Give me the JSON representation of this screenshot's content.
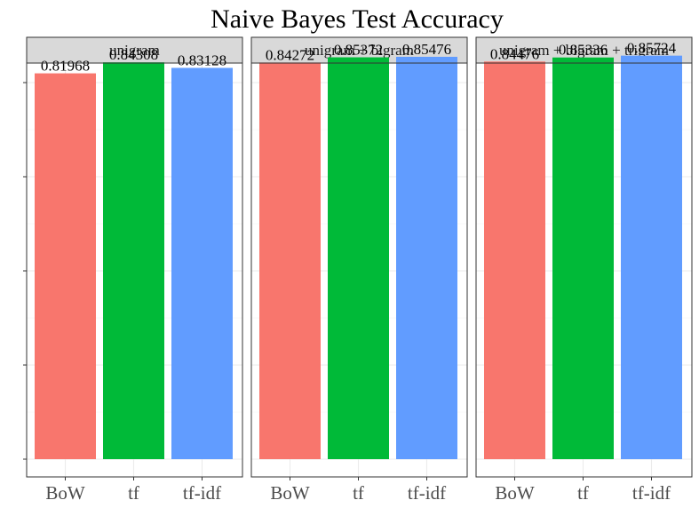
{
  "chart_data": {
    "type": "bar",
    "title": "Naive Bayes Test Accuracy",
    "xlabel": "",
    "ylabel": "",
    "ylim": [
      0,
      0.9
    ],
    "y_ticks": [
      0,
      0.2,
      0.4,
      0.6,
      0.8
    ],
    "y_tick_labels_shown": false,
    "grid": true,
    "categories": [
      "BoW",
      "tf",
      "tf-idf"
    ],
    "colors": {
      "BoW": "#F8766D",
      "tf": "#00BA38",
      "tf-idf": "#619CFF"
    },
    "panels": [
      {
        "label": "unigram",
        "values": [
          0.81968,
          0.84308,
          0.83128
        ],
        "value_labels": [
          "0.81968",
          "0.84308",
          "0.83128"
        ]
      },
      {
        "label": "unigram + bigram",
        "values": [
          0.84272,
          0.85372,
          0.85476
        ],
        "value_labels": [
          "0.84272",
          "0.85372",
          "0.85476"
        ]
      },
      {
        "label": "unigram + bigram + trigram",
        "values": [
          0.84476,
          0.85336,
          0.85724
        ],
        "value_labels": [
          "0.84476",
          "0.85336",
          "0.85724"
        ]
      }
    ]
  }
}
